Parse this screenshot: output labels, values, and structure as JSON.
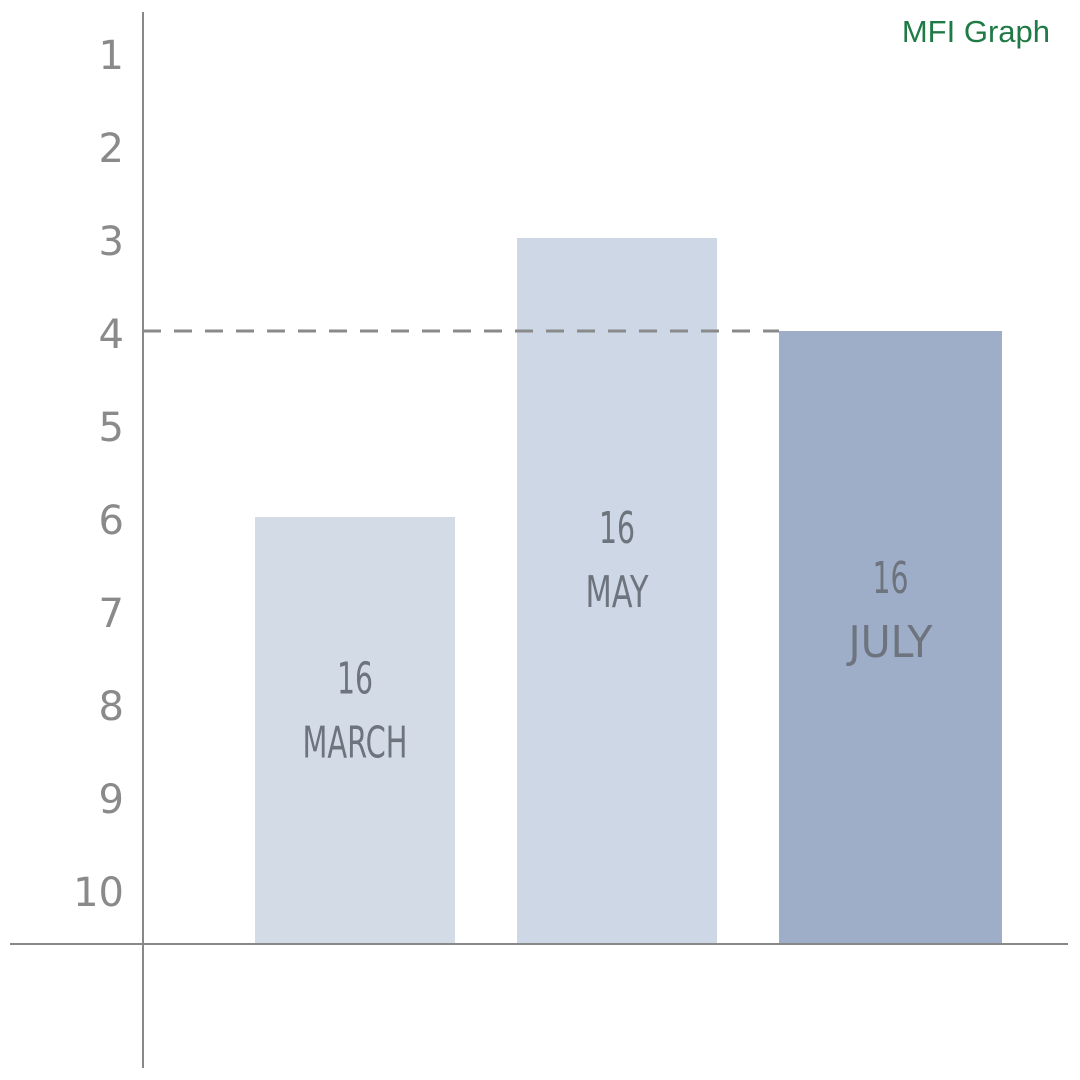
{
  "title": "MFI Graph",
  "chart_data": {
    "type": "bar",
    "title": "MFI Graph",
    "y_inverted": true,
    "ylim": [
      1,
      10
    ],
    "yticks": [
      "1",
      "2",
      "3",
      "4",
      "5",
      "6",
      "7",
      "8",
      "9",
      "10"
    ],
    "highlighted_ticks": {
      "4": "#111111",
      "7": "#d0021b"
    },
    "reference_line": {
      "value": 4,
      "style": "dashed",
      "color": "#8a8a8a"
    },
    "bars": [
      {
        "day": "16",
        "month": "MARCH",
        "value": 6,
        "color": "#d3dbe7"
      },
      {
        "day": "16",
        "month": "MAY",
        "value": 3,
        "color": "#cdd7e5"
      },
      {
        "day": "16",
        "month": "JULY",
        "value": 4,
        "color": "#9eaec9"
      }
    ],
    "grid": false,
    "legend": "none"
  }
}
